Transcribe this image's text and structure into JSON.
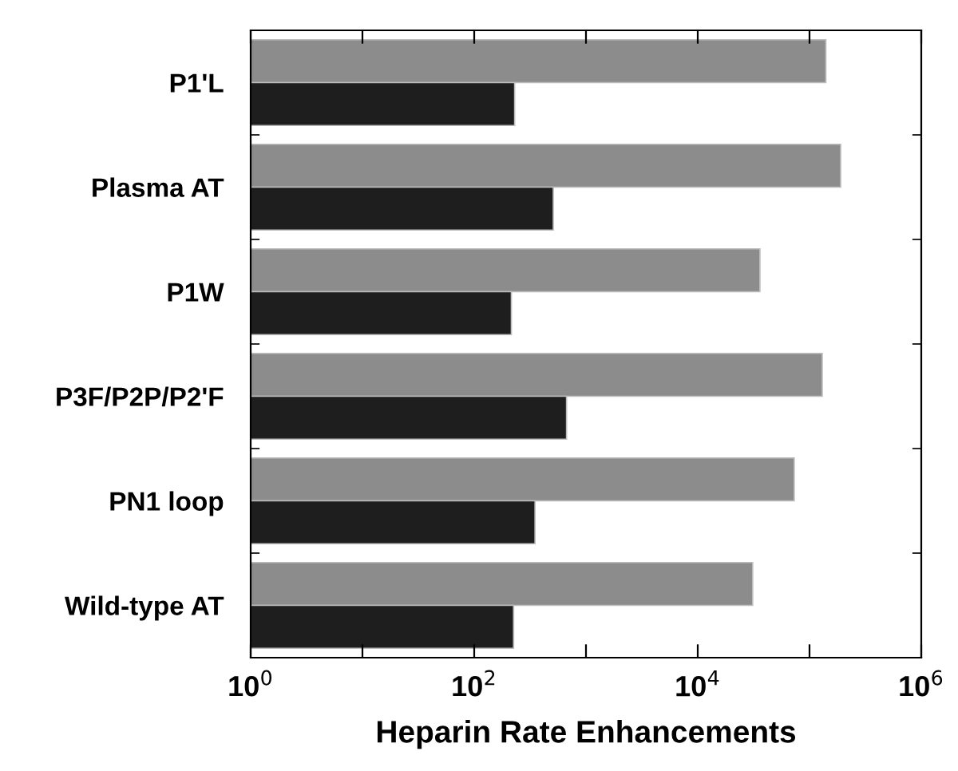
{
  "chart_data": {
    "type": "bar",
    "orientation": "horizontal",
    "xlabel": "Heparin Rate Enhancements",
    "categories": [
      "P1'L",
      "Plasma AT",
      "P1W",
      "P3F/P2P/P2'F",
      "PN1 loop",
      "Wild-type AT"
    ],
    "series": [
      {
        "color": "#8c8c8c",
        "values": [
          140000,
          190000,
          36000,
          130000,
          73000,
          31000
        ]
      },
      {
        "color": "#1e1e1e",
        "values": [
          230,
          510,
          215,
          670,
          350,
          225
        ]
      }
    ],
    "log": "x",
    "xlim": [
      1,
      1000000
    ],
    "xticks": [
      {
        "value": 1,
        "label": "10$^{0}$"
      },
      {
        "value": 10,
        "label": null
      },
      {
        "value": 100,
        "label": "10$^{2}$"
      },
      {
        "value": 1000,
        "label": null
      },
      {
        "value": 10000,
        "label": "10$^{4}$"
      },
      {
        "value": 100000,
        "label": null
      },
      {
        "value": 1000000,
        "label": "10$^{6}$"
      }
    ],
    "grid": false,
    "legend": false
  }
}
